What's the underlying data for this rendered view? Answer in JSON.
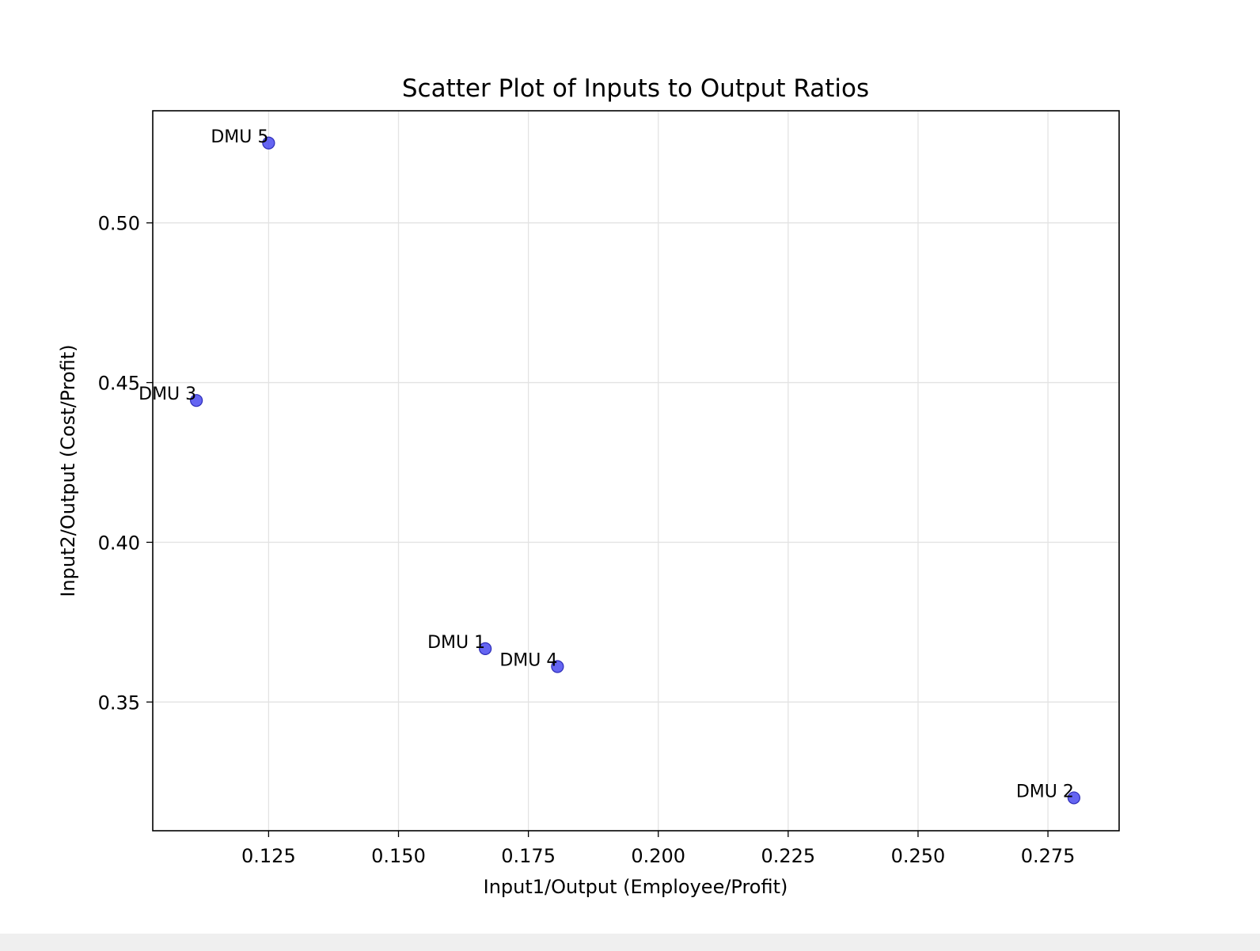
{
  "chart_data": {
    "type": "scatter",
    "title": "Scatter Plot of Inputs to Output Ratios",
    "xlabel": "Input1/Output (Employee/Profit)",
    "ylabel": "Input2/Output (Cost/Profit)",
    "xlim": [
      0.1027,
      0.2887
    ],
    "ylim": [
      0.3097,
      0.5351
    ],
    "xticks": [
      0.125,
      0.15,
      0.175,
      0.2,
      0.225,
      0.25,
      0.275
    ],
    "xtick_labels": [
      "0.125",
      "0.150",
      "0.175",
      "0.200",
      "0.225",
      "0.250",
      "0.275"
    ],
    "yticks": [
      0.35,
      0.4,
      0.45,
      0.5
    ],
    "ytick_labels": [
      "0.35",
      "0.40",
      "0.45",
      "0.50"
    ],
    "grid": true,
    "marker_color": "#4a4af0",
    "marker_edge_color": "#2d2db8",
    "points": [
      {
        "label": "DMU 1",
        "x": 0.1667,
        "y": 0.3667
      },
      {
        "label": "DMU 2",
        "x": 0.28,
        "y": 0.32
      },
      {
        "label": "DMU 3",
        "x": 0.1111,
        "y": 0.4444
      },
      {
        "label": "DMU 4",
        "x": 0.1806,
        "y": 0.3611
      },
      {
        "label": "DMU 5",
        "x": 0.125,
        "y": 0.525
      }
    ]
  }
}
